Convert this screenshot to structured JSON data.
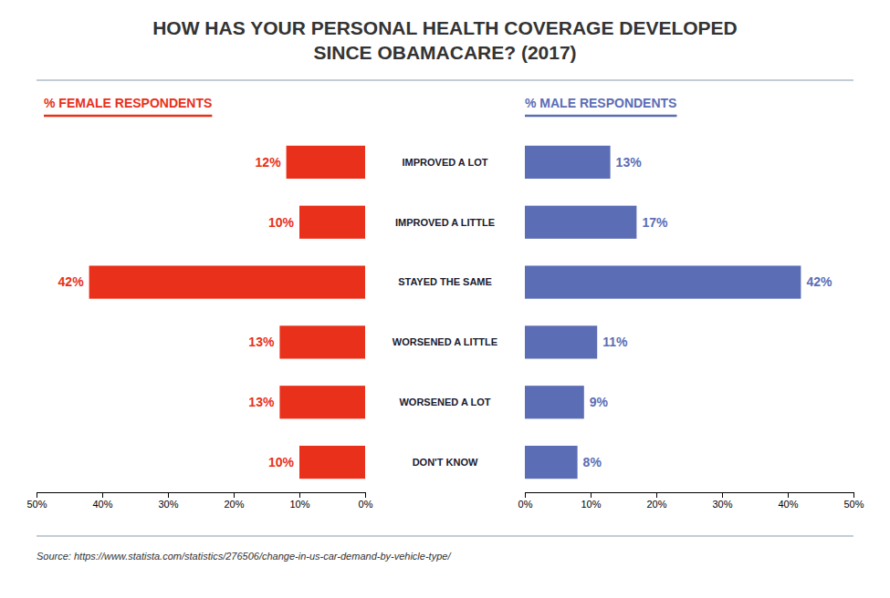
{
  "chart_data": {
    "type": "bar",
    "orientation": "horizontal",
    "title": "HOW HAS YOUR PERSONAL HEALTH COVERAGE DEVELOPED\nSINCE OBAMACARE? (2017)",
    "categories": [
      "IMPROVED A LOT",
      "IMPROVED A LITTLE",
      "STAYED THE SAME",
      "WORSENED A LITTLE",
      "WORSENED A LOT",
      "DON'T KNOW"
    ],
    "series": [
      {
        "name": "% FEMALE RESPONDENTS",
        "color": "#E8301A",
        "values": [
          12,
          10,
          42,
          13,
          13,
          10
        ],
        "value_labels": [
          "12%",
          "10%",
          "42%",
          "13%",
          "13%",
          "10%"
        ]
      },
      {
        "name": "% MALE RESPONDENTS",
        "color": "#5B6DB5",
        "values": [
          13,
          17,
          42,
          11,
          9,
          8
        ],
        "value_labels": [
          "13%",
          "17%",
          "42%",
          "11%",
          "9%",
          "8%"
        ]
      }
    ],
    "xlim": [
      0,
      50
    ],
    "xticks": [
      {
        "value": 0,
        "label": "0%"
      },
      {
        "value": 10,
        "label": "10%"
      },
      {
        "value": 20,
        "label": "20%"
      },
      {
        "value": 30,
        "label": "30%"
      },
      {
        "value": 40,
        "label": "40%"
      },
      {
        "value": 50,
        "label": "50%"
      }
    ],
    "data_labels": true,
    "source": "Source: https://www.statista.com/statistics/276506/change-in-us-car-demand-by-vehicle-type/"
  }
}
